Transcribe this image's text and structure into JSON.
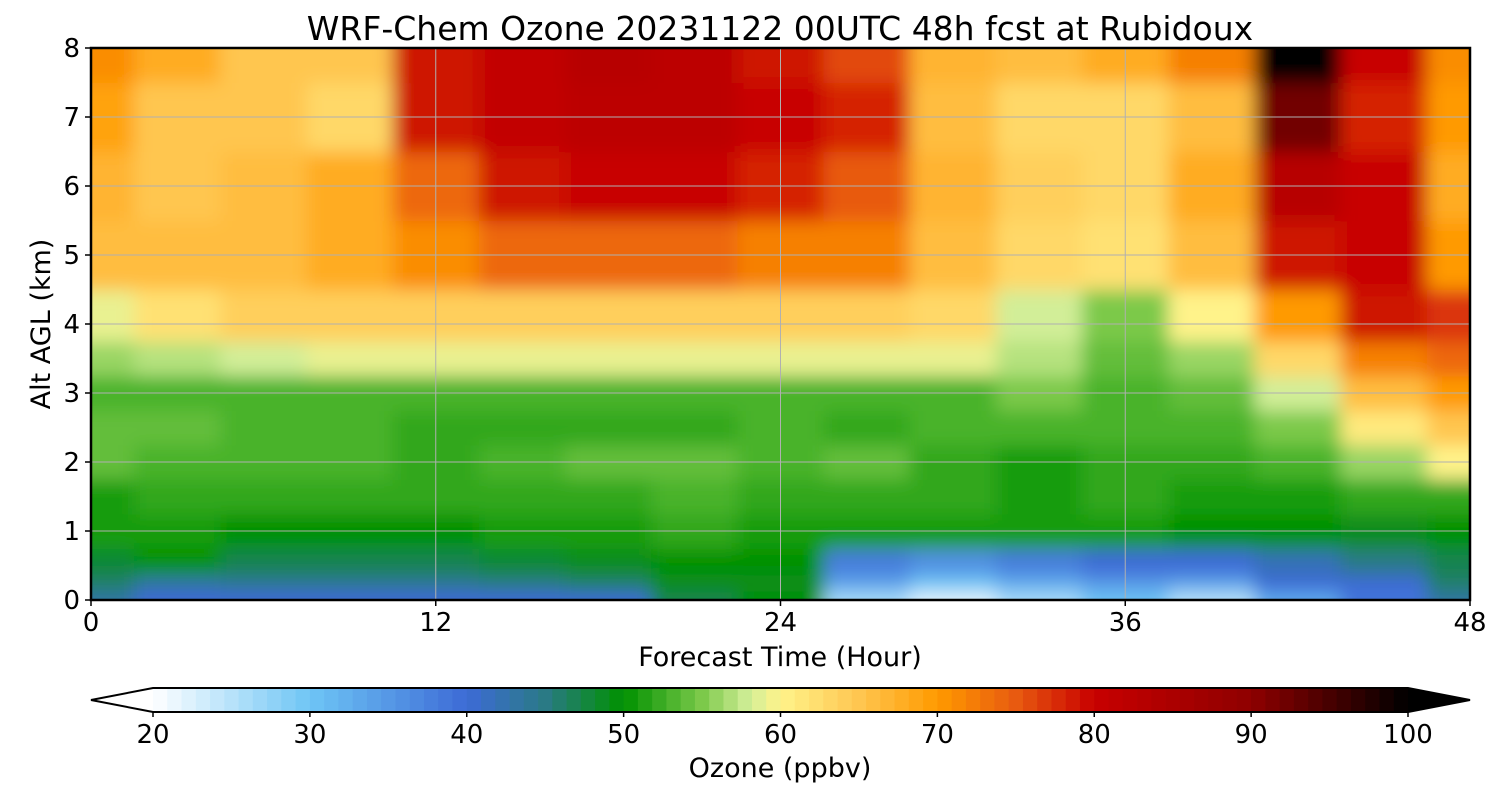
{
  "chart_data": {
    "type": "heatmap",
    "title": "WRF-Chem Ozone  20231122 00UTC 48h fcst at Rubidoux",
    "xlabel": "Forecast Time (Hour)",
    "ylabel": "Alt AGL (km)",
    "xlim": [
      0,
      48
    ],
    "ylim": [
      0,
      8
    ],
    "xticks": [
      0,
      12,
      24,
      36,
      48
    ],
    "yticks": [
      0,
      1,
      2,
      3,
      4,
      5,
      6,
      7,
      8
    ],
    "grid": true,
    "x": [
      0,
      3,
      6,
      9,
      12,
      15,
      18,
      21,
      24,
      27,
      30,
      33,
      36,
      39,
      42,
      45,
      48
    ],
    "y": [
      0,
      0.25,
      0.5,
      1,
      1.5,
      2,
      2.5,
      3,
      3.5,
      4,
      5,
      6,
      7,
      8
    ],
    "z": [
      [
        43,
        40,
        40,
        40,
        40,
        40,
        40,
        47,
        50,
        26,
        22,
        26,
        30,
        25,
        33,
        39,
        43
      ],
      [
        46,
        43,
        44,
        44,
        44,
        45,
        46,
        49,
        49,
        34,
        30,
        33,
        35,
        34,
        40,
        40,
        46
      ],
      [
        48,
        50,
        47,
        47,
        47,
        48,
        49,
        50,
        50,
        38,
        36,
        38,
        40,
        40,
        42,
        45,
        47
      ],
      [
        51,
        51,
        50,
        50,
        50,
        51,
        51,
        52,
        51,
        51,
        51,
        51,
        51,
        50,
        50,
        49,
        50
      ],
      [
        51,
        52,
        52,
        52,
        52,
        52,
        52,
        53,
        52,
        52,
        52,
        51,
        52,
        51,
        51,
        52,
        52
      ],
      [
        54,
        53,
        53,
        53,
        52,
        53,
        54,
        54,
        53,
        54,
        52,
        51,
        52,
        52,
        53,
        56,
        60
      ],
      [
        54,
        54,
        53,
        53,
        52,
        52,
        52,
        52,
        53,
        52,
        53,
        53,
        53,
        53,
        55,
        61,
        65
      ],
      [
        53,
        53,
        53,
        53,
        53,
        53,
        53,
        53,
        53,
        53,
        53,
        55,
        53,
        54,
        58,
        66,
        70
      ],
      [
        56,
        57,
        58,
        59,
        59,
        59,
        59,
        59,
        59,
        59,
        59,
        57,
        54,
        56,
        63,
        72,
        74
      ],
      [
        59,
        62,
        64,
        64,
        64,
        64,
        64,
        64,
        64,
        64,
        63,
        58,
        55,
        60,
        70,
        79,
        77
      ],
      [
        66,
        66,
        66,
        68,
        71,
        74,
        74,
        74,
        72,
        72,
        66,
        63,
        62,
        66,
        79,
        80,
        70
      ],
      [
        67,
        65,
        66,
        68,
        74,
        79,
        80,
        80,
        78,
        75,
        67,
        64,
        63,
        68,
        83,
        80,
        68
      ],
      [
        69,
        65,
        65,
        63,
        79,
        81,
        82,
        82,
        80,
        78,
        66,
        63,
        63,
        66,
        92,
        78,
        70
      ],
      [
        71,
        68,
        65,
        65,
        79,
        81,
        83,
        82,
        79,
        76,
        67,
        66,
        68,
        72,
        100,
        80,
        71
      ]
    ],
    "colorbar": {
      "label": "Ozone  (ppbv)",
      "min": 20,
      "max": 100,
      "ticks": [
        20,
        30,
        40,
        50,
        60,
        70,
        80,
        90,
        100
      ],
      "extend": "both",
      "stops": [
        {
          "value": 20,
          "color": "#ffffff"
        },
        {
          "value": 30,
          "color": "#6ec5f5"
        },
        {
          "value": 40,
          "color": "#3d6bd6"
        },
        {
          "value": 45,
          "color": "#2a7a85"
        },
        {
          "value": 50,
          "color": "#009100"
        },
        {
          "value": 55,
          "color": "#7cc94a"
        },
        {
          "value": 58,
          "color": "#d2ee98"
        },
        {
          "value": 60,
          "color": "#fff38a"
        },
        {
          "value": 65,
          "color": "#ffc650"
        },
        {
          "value": 70,
          "color": "#ff9a00"
        },
        {
          "value": 75,
          "color": "#e85a10"
        },
        {
          "value": 80,
          "color": "#c80000"
        },
        {
          "value": 90,
          "color": "#8e0000"
        },
        {
          "value": 100,
          "color": "#000000"
        }
      ]
    }
  }
}
